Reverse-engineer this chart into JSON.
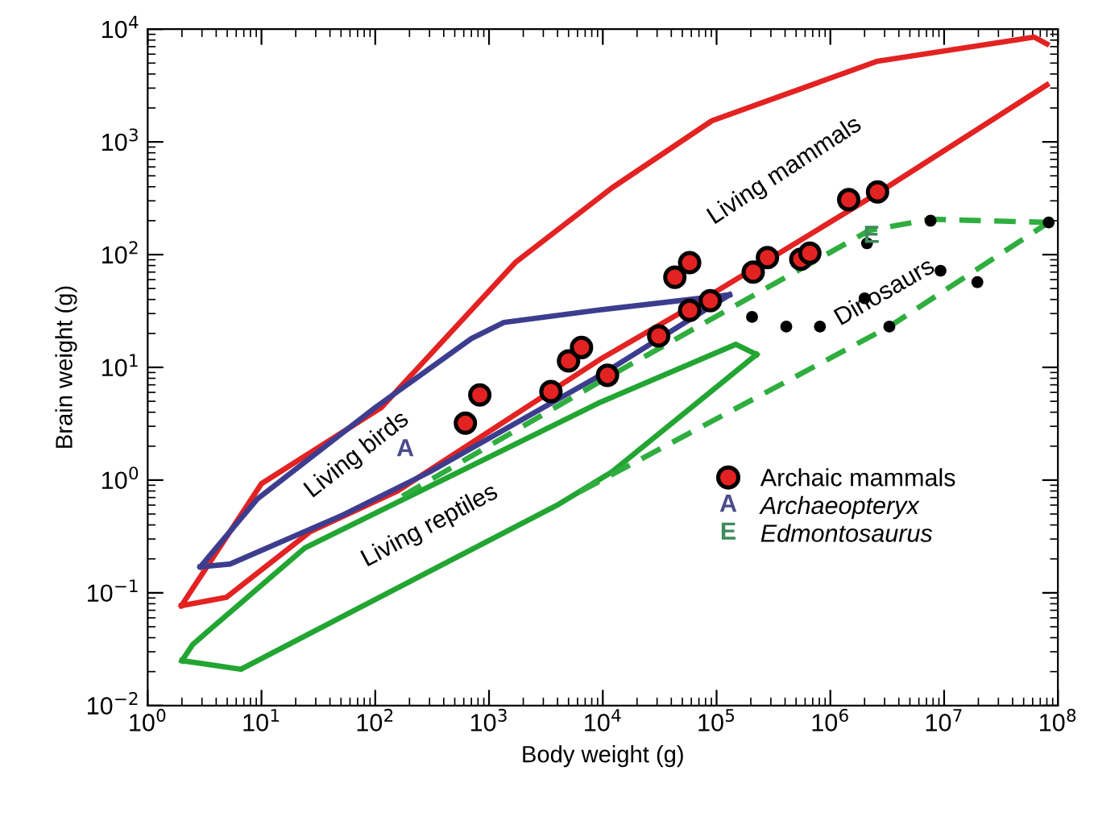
{
  "chart_data": {
    "type": "scatter",
    "xlabel": "Body weight (g)",
    "ylabel": "Brain weight (g)",
    "log": "xy",
    "grid": false,
    "legend": "bottom right",
    "xlim": [
      1,
      100000000
    ],
    "ylim": [
      0.01,
      10000
    ],
    "xticks": [
      {
        "value": 1,
        "label": "10$^{0}$"
      },
      {
        "value": 10,
        "label": "10$^{1}$"
      },
      {
        "value": 100,
        "label": "10$^{2}$"
      },
      {
        "value": 1000,
        "label": "10$^{3}$"
      },
      {
        "value": 10000,
        "label": "10$^{4}$"
      },
      {
        "value": 100000,
        "label": "10$^{5}$"
      },
      {
        "value": 1000000,
        "label": "10$^{6}$"
      },
      {
        "value": 10000000,
        "label": "10$^{7}$"
      },
      {
        "value": 100000000,
        "label": "10$^{8}$"
      }
    ],
    "yticks": [
      {
        "value": 0.01,
        "label": "10$^{−2}$"
      },
      {
        "value": 0.1,
        "label": "10$^{−1}$"
      },
      {
        "value": 1,
        "label": "10$^{0}$"
      },
      {
        "value": 10,
        "label": "10$^{1}$"
      },
      {
        "value": 100,
        "label": "10$^{2}$"
      },
      {
        "value": 1000,
        "label": "10$^{3}$"
      },
      {
        "value": 10000,
        "label": "10$^{4}$"
      }
    ],
    "annotations": [
      "A",
      {
        "text": "E",
        "x": 2300000,
        "y": 145
      },
      "Archaeopteryx",
      "Edmontosaurus"
    ],
    "series": [
      {
        "name": "Living mammals",
        "type": "line",
        "line_style": "solid",
        "color": "#e32222",
        "x": [
          1.98,
          10,
          113,
          1700,
          12000,
          91000,
          2600000,
          62000000,
          80000000
        ],
        "values": [
          0.077,
          0.93,
          4.4,
          85,
          390,
          1540,
          5200,
          8500,
          7400
        ]
      },
      {
        "type": "line",
        "line_style": "solid",
        "color": "#e32222",
        "x": [
          1.98,
          4.9,
          27,
          157,
          9500,
          61000,
          2600000,
          80000000
        ],
        "values": [
          0.077,
          0.091,
          0.35,
          0.8,
          11.8,
          35,
          350,
          3200
        ]
      },
      {
        "name": "Living birds",
        "type": "line",
        "line_style": "solid",
        "color": "#3d3d8f",
        "x": [
          2.9,
          9.2,
          100,
          700,
          1350,
          8700,
          130000
        ],
        "values": [
          0.17,
          0.68,
          4.4,
          18,
          25,
          32,
          44
        ]
      },
      {
        "type": "line",
        "line_style": "solid",
        "color": "#3d3d8f",
        "x": [
          2.9,
          5.3,
          52,
          300,
          9500,
          130000
        ],
        "values": [
          0.17,
          0.18,
          0.49,
          1.18,
          8.5,
          44
        ]
      },
      {
        "name": "Living reptiles",
        "type": "line",
        "line_style": "solid",
        "color": "#22a532",
        "x": [
          2,
          2.5,
          24,
          9500,
          148000,
          225000
        ],
        "values": [
          0.025,
          0.035,
          0.25,
          4.9,
          16,
          13
        ]
      },
      {
        "type": "line",
        "line_style": "solid",
        "color": "#22a532",
        "x": [
          2,
          6.6,
          4100,
          12000,
          225000
        ],
        "values": [
          0.025,
          0.021,
          0.61,
          1.18,
          13
        ]
      },
      {
        "name": "Dinosaurs",
        "type": "line",
        "line_style": "dashed",
        "color": "#2fae3f",
        "x": [
          173,
          9500,
          2200000,
          7600000,
          83000000
        ],
        "values": [
          0.72,
          7.5,
          164,
          206,
          193
        ]
      },
      {
        "type": "line",
        "line_style": "dashed",
        "color": "#2fae3f",
        "x": [
          6300,
          3300000,
          83000000
        ],
        "values": [
          0.79,
          23,
          193
        ]
      },
      {
        "marker": "circle",
        "color": "#000000",
        "x": [
          205000,
          410000,
          810000,
          2000000,
          2100000,
          3300000,
          7600000,
          9300000,
          19600000,
          83000000
        ],
        "values": [
          28,
          23,
          23,
          41,
          126,
          23,
          200,
          72,
          57,
          193
        ]
      },
      {
        "name": "Archaic mammals",
        "marker": "circle",
        "color": "#e32222",
        "x": [
          620,
          830,
          3500,
          5000,
          6500,
          11000,
          31000,
          58000,
          88000,
          43000,
          58000,
          210000,
          280000,
          550000,
          660000,
          1450000,
          2600000
        ],
        "values": [
          3.2,
          5.7,
          6.1,
          11.4,
          15,
          8.5,
          19,
          32,
          39,
          63,
          85,
          70,
          94,
          91,
          103,
          307,
          360
        ]
      }
    ]
  }
}
